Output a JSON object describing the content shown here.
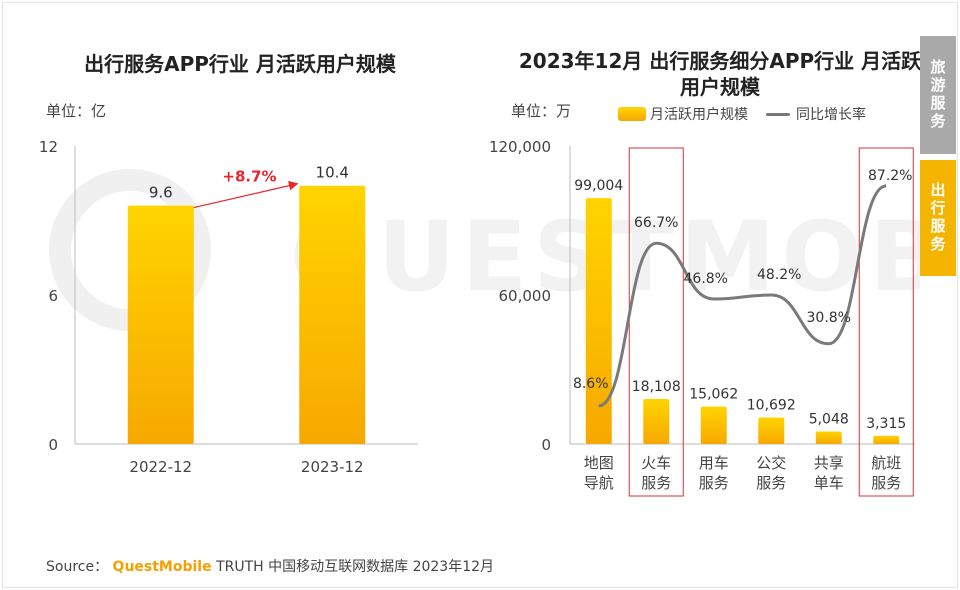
{
  "tabs": [
    {
      "label": "旅游服务",
      "active": false
    },
    {
      "label": "出行服务",
      "active": true
    }
  ],
  "source": {
    "prefix": "Source：",
    "brand": "QuestMobile",
    "rest": "TRUTH 中国移动互联网数据库 2023年12月"
  },
  "watermark": "QUESTMOBILE",
  "colors": {
    "bar_top": "#ffd400",
    "bar_bottom": "#f7a800",
    "line": "#7a7a7a",
    "highlight_box": "#d9303a",
    "growth_arrow": "#e8262b",
    "tab_active": "#f5b400",
    "tab_inactive": "#a9a9a9"
  },
  "chart_data": [
    {
      "type": "bar",
      "title": "出行服务APP行业 月活跃用户规模",
      "unit_label": "单位：亿",
      "categories": [
        "2022-12",
        "2023-12"
      ],
      "values": [
        9.6,
        10.4
      ],
      "value_labels": [
        "9.6",
        "10.4"
      ],
      "yticks": [
        "0",
        "6",
        "12"
      ],
      "ylim": [
        0,
        12
      ],
      "annotation": "+8.7%"
    },
    {
      "type": "bar",
      "title": "2023年12月 出行服务细分APP行业 月活跃用户规模",
      "unit_label": "单位：万",
      "categories": [
        "地图导航",
        "火车服务",
        "用车服务",
        "公交服务",
        "共享单车",
        "航班服务"
      ],
      "category_lines": [
        [
          "地图",
          "导航"
        ],
        [
          "火车",
          "服务"
        ],
        [
          "用车",
          "服务"
        ],
        [
          "公交",
          "服务"
        ],
        [
          "共享",
          "单车"
        ],
        [
          "航班",
          "服务"
        ]
      ],
      "series": [
        {
          "name": "月活跃用户规模",
          "type": "bar",
          "values": [
            99004,
            18108,
            15062,
            10692,
            5048,
            3315
          ],
          "labels": [
            "99,004",
            "18,108",
            "15,062",
            "10,692",
            "5,048",
            "3,315"
          ]
        },
        {
          "name": "同比增长率",
          "type": "line",
          "values": [
            8.6,
            66.7,
            46.8,
            48.2,
            30.8,
            87.2
          ],
          "labels": [
            "8.6%",
            "66.7%",
            "46.8%",
            "48.2%",
            "30.8%",
            "87.2%"
          ]
        }
      ],
      "yticks": [
        "0",
        "60,000",
        "120,000"
      ],
      "ylim": [
        0,
        120000
      ],
      "highlighted_categories": [
        "火车服务",
        "航班服务"
      ],
      "legend_position": "top"
    }
  ]
}
